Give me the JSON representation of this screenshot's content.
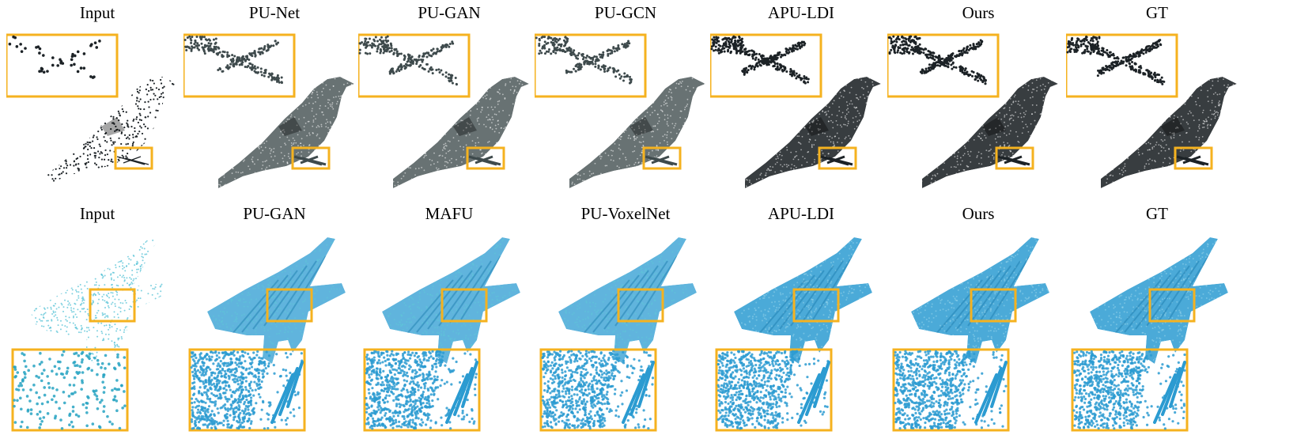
{
  "colors": {
    "frame": "#f5b21f",
    "bird": "#1c2226",
    "jet": "#2b9bd1",
    "jet_light": "#5fc6d8"
  },
  "rows": [
    {
      "subject": "bird",
      "panels": [
        {
          "label": "Input",
          "style": "sparse"
        },
        {
          "label": "PU-Net",
          "style": "gray"
        },
        {
          "label": "PU-GAN",
          "style": "gray"
        },
        {
          "label": "PU-GCN",
          "style": "gray"
        },
        {
          "label": "APU-LDI",
          "style": "dense"
        },
        {
          "label": "Ours",
          "style": "dense"
        },
        {
          "label": "GT",
          "style": "dense"
        }
      ]
    },
    {
      "subject": "jet",
      "panels": [
        {
          "label": "Input",
          "style": "sparse"
        },
        {
          "label": "PU-GAN",
          "style": "mixed"
        },
        {
          "label": "MAFU",
          "style": "mixed"
        },
        {
          "label": "PU-VoxelNet",
          "style": "mixed"
        },
        {
          "label": "APU-LDI",
          "style": "dense"
        },
        {
          "label": "Ours",
          "style": "dense"
        },
        {
          "label": "GT",
          "style": "dense"
        }
      ]
    }
  ]
}
